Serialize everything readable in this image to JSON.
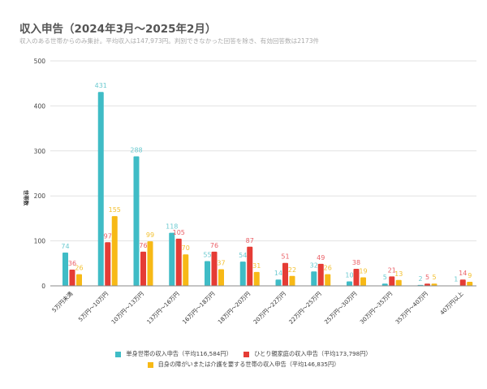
{
  "chart_data": {
    "type": "bar",
    "title": "収入申告（2024年3月～2025年2月）",
    "subtitle": "収入のある世帯からのみ集計。平均収入は147,973円。判別できなかった回答を除き、有効回答数は2173件",
    "ylabel": "世帯数",
    "xlabel": "",
    "ylim": [
      0,
      500
    ],
    "yticks": [
      0,
      100,
      200,
      300,
      400,
      500
    ],
    "grid": true,
    "legend_position": "bottom",
    "categories": [
      "5万円未満",
      "5万円～10万円",
      "10万円～13万円",
      "13万円～16万円",
      "16万円～18万円",
      "18万円～20万円",
      "20万円～22万円",
      "22万円～25万円",
      "25万円～30万円",
      "30万円～35万円",
      "35万円～40万円",
      "40万円以上"
    ],
    "series": [
      {
        "name": "単身世帯の収入申告（平均116,584円）",
        "color": "#3fbcc6",
        "label_color": "#6ccad0",
        "values": [
          74,
          431,
          288,
          118,
          55,
          54,
          14,
          32,
          10,
          5,
          2,
          1
        ]
      },
      {
        "name": "ひとり親家庭の収入申告（平均173,798円）",
        "color": "#e53c35",
        "label_color": "#ea5f66",
        "values": [
          36,
          97,
          76,
          105,
          76,
          87,
          51,
          49,
          38,
          21,
          5,
          14
        ]
      },
      {
        "name": "自身の障がいまたは介護を要する世帯の収入申告（平均146,835円）",
        "color": "#f7b916",
        "label_color": "#f3c02f",
        "values": [
          26,
          155,
          99,
          70,
          37,
          31,
          22,
          26,
          19,
          13,
          5,
          9
        ]
      }
    ]
  }
}
